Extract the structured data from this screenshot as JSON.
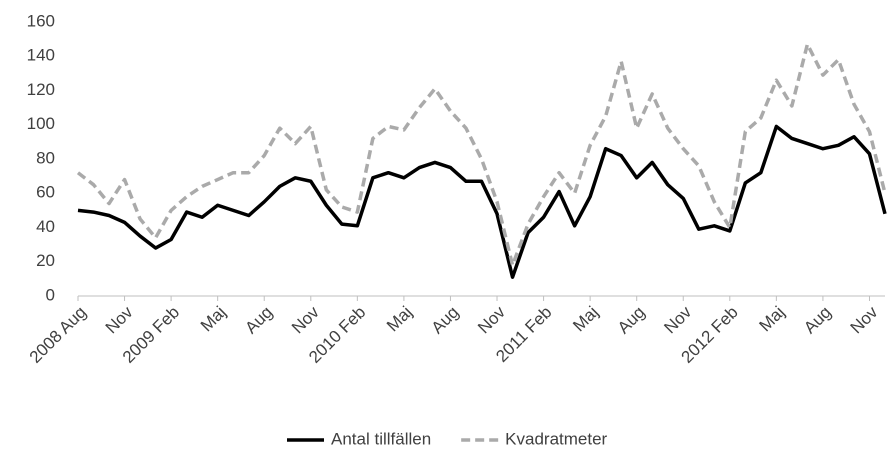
{
  "chart_data": {
    "type": "line",
    "categories": [
      "2008 Aug",
      null,
      null,
      "Nov",
      null,
      null,
      "2009 Feb",
      null,
      null,
      "Maj",
      null,
      null,
      "Aug",
      null,
      null,
      "Nov",
      null,
      null,
      "2010 Feb",
      null,
      null,
      "Maj",
      null,
      null,
      "Aug",
      null,
      null,
      "Nov",
      null,
      null,
      "2011 Feb",
      null,
      null,
      "Maj",
      null,
      null,
      "Aug",
      null,
      null,
      "Nov",
      null,
      null,
      "2012 Feb",
      null,
      null,
      "Maj",
      null,
      null,
      "Aug",
      null,
      null,
      "Nov",
      null
    ],
    "series": [
      {
        "name": "Antal tillfällen",
        "color": "#000000",
        "dash": false,
        "values": [
          50,
          49,
          47,
          43,
          35,
          28,
          33,
          49,
          46,
          53,
          50,
          47,
          55,
          64,
          69,
          67,
          53,
          42,
          41,
          69,
          72,
          69,
          75,
          78,
          75,
          67,
          67,
          48,
          11,
          37,
          46,
          61,
          41,
          58,
          86,
          82,
          69,
          78,
          65,
          57,
          39,
          41,
          38,
          66,
          72,
          99,
          92,
          89,
          86,
          88,
          93,
          83,
          48
        ]
      },
      {
        "name": "Kvadratmeter",
        "color": "#aaaaaa",
        "dash": true,
        "values": [
          72,
          65,
          54,
          68,
          45,
          34,
          50,
          58,
          64,
          68,
          72,
          72,
          82,
          98,
          89,
          99,
          62,
          52,
          49,
          92,
          99,
          97,
          110,
          121,
          108,
          98,
          80,
          55,
          18,
          42,
          58,
          72,
          60,
          88,
          105,
          137,
          98,
          118,
          98,
          86,
          76,
          55,
          40,
          96,
          104,
          126,
          111,
          147,
          129,
          138,
          112,
          96,
          60
        ]
      }
    ],
    "ylim": [
      0,
      160
    ],
    "yticks": [
      0,
      20,
      40,
      60,
      80,
      100,
      120,
      140,
      160
    ],
    "grid": false,
    "legend": "bottom"
  }
}
